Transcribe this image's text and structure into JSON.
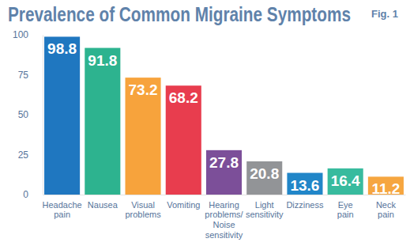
{
  "chart_data": {
    "type": "bar",
    "title": "Prevalence of Common Migraine Symptoms",
    "subtitle": "Fig. 1",
    "categories": [
      "Headache pain",
      "Nausea",
      "Visual problems",
      "Vomiting",
      "Hearing problems/ Noise sensitivity",
      "Light sensitivity",
      "Dizziness",
      "Eye pain",
      "Neck pain"
    ],
    "values": [
      98.8,
      91.8,
      73.2,
      68.2,
      27.8,
      20.8,
      13.6,
      16.4,
      11.2
    ],
    "colors": [
      "#1f77c0",
      "#2db38f",
      "#f7a33c",
      "#e83d4e",
      "#7c4f99",
      "#929497",
      "#2186c8",
      "#38bb9e",
      "#f6a640"
    ],
    "ylim": [
      0,
      100
    ],
    "yticks": [
      0,
      25,
      50,
      75,
      100
    ],
    "grid": false,
    "data_labels": true
  }
}
